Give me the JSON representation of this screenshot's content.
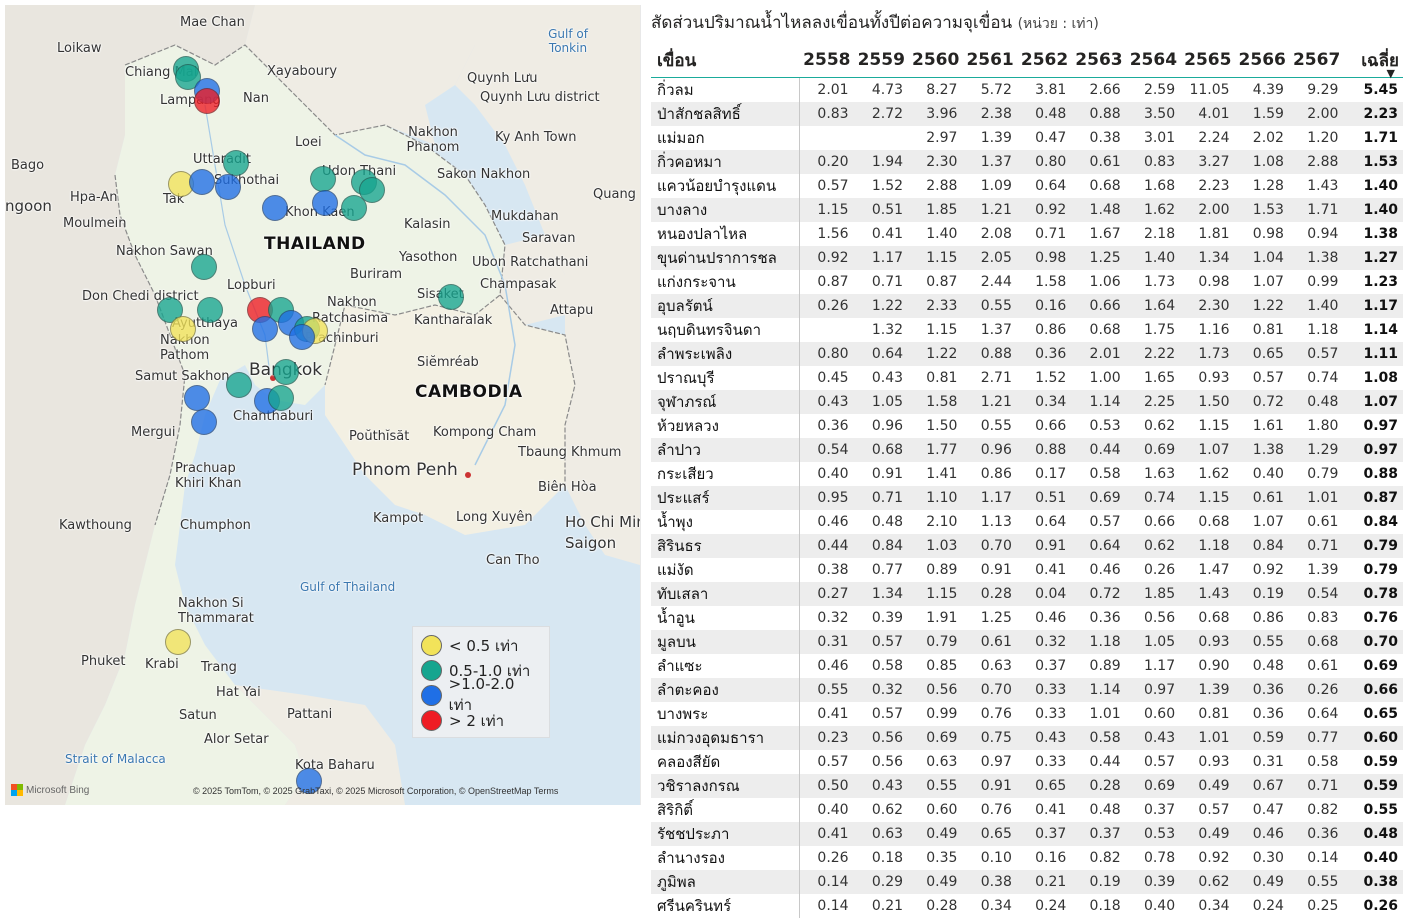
{
  "map": {
    "country_labels": [
      "THAILAND",
      "CAMBODIA"
    ],
    "place_labels": [
      "Mae Chan",
      "Loikaw",
      "Chiang Mai",
      "Xayaboury",
      "Quynh Lưu",
      "Quynh Lưu district",
      "Lampang",
      "Nan",
      "Gulf of Tonkin",
      "Loei",
      "Nakhon Phanom",
      "Ky Anh Town",
      "Bago",
      "Uttaradit",
      "Udon Thani",
      "Sakon Nakhon",
      "Sukhothai",
      "Hpa-An",
      "Tak",
      "Khon Kaen",
      "Quang",
      "ngoon",
      "Moulmein",
      "Kalasin",
      "Mukdahan",
      "Saravan",
      "Nakhon Sawan",
      "Yasothon",
      "Ubon Ratchathani",
      "Buriram",
      "Don Chedi district",
      "Lopburi",
      "Sisaket",
      "Champasak",
      "Nakhon",
      "Ratchasima",
      "Attapu",
      "Ayutthaya",
      "Kantharalak",
      "Nakhon Pathom",
      "Prachinburi",
      "Samut Sakhon",
      "Bangkok",
      "Siĕmréab",
      "Chanthaburi",
      "Mergui",
      "Poŭthĭsăt",
      "Kompong Cham",
      "Phnom Penh",
      "Tbaung Khmum",
      "Prachuap Khiri Khan",
      "Biên Hòa",
      "Kawthoung",
      "Chumphon",
      "Kampot",
      "Long Xuyên",
      "Ho Chi Minh",
      "Saigon",
      "Can Tho",
      "Gulf of Thailand",
      "Nakhon Si Thammarat",
      "Phuket",
      "Krabi",
      "Trang",
      "Hat Yai",
      "Satun",
      "Pattani",
      "Alor Setar",
      "Strait of Malacca",
      "Kota Baharu"
    ],
    "legend": [
      {
        "label": "< 0.5 เท่า",
        "color": "#f2e35a"
      },
      {
        "label": "0.5-1.0 เท่า",
        "color": "#16a58f"
      },
      {
        "label": ">1.0-2.0 เท่า",
        "color": "#1f6fe6"
      },
      {
        "label": "> 2 เท่า",
        "color": "#ee1c24"
      }
    ],
    "markers": [
      {
        "lat": 19.45,
        "lon": 98.75,
        "category": "0.5-1.0 เท่า"
      },
      {
        "lat": 19.3,
        "lon": 98.78,
        "category": "0.5-1.0 เท่า"
      },
      {
        "lat": 19.05,
        "lon": 99.15,
        "category": ">1.0-2.0 เท่า"
      },
      {
        "lat": 18.85,
        "lon": 99.15,
        "category": "> 2 เท่า"
      },
      {
        "lat": 17.7,
        "lon": 99.7,
        "category": "0.5-1.0 เท่า"
      },
      {
        "lat": 17.3,
        "lon": 98.65,
        "category": "< 0.5 เท่า"
      },
      {
        "lat": 17.35,
        "lon": 99.05,
        "category": ">1.0-2.0 เท่า"
      },
      {
        "lat": 17.25,
        "lon": 99.55,
        "category": ">1.0-2.0 เท่า"
      },
      {
        "lat": 17.4,
        "lon": 101.35,
        "category": "0.5-1.0 เท่า"
      },
      {
        "lat": 17.35,
        "lon": 102.15,
        "category": "0.5-1.0 เท่า"
      },
      {
        "lat": 17.2,
        "lon": 102.3,
        "category": "0.5-1.0 เท่า"
      },
      {
        "lat": 16.95,
        "lon": 101.4,
        "category": ">1.0-2.0 เท่า"
      },
      {
        "lat": 16.85,
        "lon": 100.45,
        "category": ">1.0-2.0 เท่า"
      },
      {
        "lat": 16.85,
        "lon": 101.95,
        "category": "0.5-1.0 เท่า"
      },
      {
        "lat": 15.75,
        "lon": 99.1,
        "category": "0.5-1.0 เท่า"
      },
      {
        "lat": 15.2,
        "lon": 103.8,
        "category": "0.5-1.0 เท่า"
      },
      {
        "lat": 14.95,
        "lon": 98.45,
        "category": "0.5-1.0 เท่า"
      },
      {
        "lat": 14.95,
        "lon": 99.2,
        "category": "0.5-1.0 เท่า"
      },
      {
        "lat": 14.95,
        "lon": 100.15,
        "category": "> 2 เท่า"
      },
      {
        "lat": 14.95,
        "lon": 100.55,
        "category": "0.5-1.0 เท่า"
      },
      {
        "lat": 14.6,
        "lon": 98.7,
        "category": "< 0.5 เท่า"
      },
      {
        "lat": 14.6,
        "lon": 100.25,
        "category": ">1.0-2.0 เท่า"
      },
      {
        "lat": 14.7,
        "lon": 100.75,
        "category": ">1.0-2.0 เท่า"
      },
      {
        "lat": 14.6,
        "lon": 101.05,
        "category": "0.5-1.0 เท่า"
      },
      {
        "lat": 14.55,
        "lon": 101.2,
        "category": "< 0.5 เท่า"
      },
      {
        "lat": 14.45,
        "lon": 100.95,
        "category": ">1.0-2.0 เท่า"
      },
      {
        "lat": 13.8,
        "lon": 100.65,
        "category": "0.5-1.0 เท่า"
      },
      {
        "lat": 13.55,
        "lon": 99.75,
        "category": "0.5-1.0 เท่า"
      },
      {
        "lat": 13.3,
        "lon": 98.95,
        "category": ">1.0-2.0 เท่า"
      },
      {
        "lat": 13.25,
        "lon": 100.3,
        "category": ">1.0-2.0 เท่า"
      },
      {
        "lat": 13.3,
        "lon": 100.55,
        "category": "0.5-1.0 เท่า"
      },
      {
        "lat": 12.85,
        "lon": 99.1,
        "category": ">1.0-2.0 เท่า"
      },
      {
        "lat": 8.75,
        "lon": 98.6,
        "category": "< 0.5 เท่า"
      },
      {
        "lat": 6.15,
        "lon": 101.1,
        "category": ">1.0-2.0 เท่า"
      }
    ],
    "attribution": "© 2025 TomTom, © 2025 GrabTaxi, © 2025 Microsoft Corporation, © OpenStreetMap  Terms",
    "bing_label": "Microsoft Bing"
  },
  "table": {
    "title": "สัดส่วนปริมาณน้ำไหลลงเขื่อนทั้งปีต่อความจุเขื่อน",
    "unit": "(หน่วย : เท่า)",
    "columns": [
      "เขื่อน",
      "2558",
      "2559",
      "2560",
      "2561",
      "2562",
      "2563",
      "2564",
      "2565",
      "2566",
      "2567",
      "เฉลี่ย"
    ],
    "rows": [
      [
        "กิ่วลม",
        "2.01",
        "4.73",
        "8.27",
        "5.72",
        "3.81",
        "2.66",
        "2.59",
        "11.05",
        "4.39",
        "9.29",
        "5.45"
      ],
      [
        "ป่าสักชลสิทธิ์",
        "0.83",
        "2.72",
        "3.96",
        "2.38",
        "0.48",
        "0.88",
        "3.50",
        "4.01",
        "1.59",
        "2.00",
        "2.23"
      ],
      [
        "แม่มอก",
        "",
        "",
        "2.97",
        "1.39",
        "0.47",
        "0.38",
        "3.01",
        "2.24",
        "2.02",
        "1.20",
        "1.71"
      ],
      [
        "กิ่วคอหมา",
        "0.20",
        "1.94",
        "2.30",
        "1.37",
        "0.80",
        "0.61",
        "0.83",
        "3.27",
        "1.08",
        "2.88",
        "1.53"
      ],
      [
        "แควน้อยบำรุงแดน",
        "0.57",
        "1.52",
        "2.88",
        "1.09",
        "0.64",
        "0.68",
        "1.68",
        "2.23",
        "1.28",
        "1.43",
        "1.40"
      ],
      [
        "บางลาง",
        "1.15",
        "0.51",
        "1.85",
        "1.21",
        "0.92",
        "1.48",
        "1.62",
        "2.00",
        "1.53",
        "1.71",
        "1.40"
      ],
      [
        "หนองปลาไหล",
        "1.56",
        "0.41",
        "1.40",
        "2.08",
        "0.71",
        "1.67",
        "2.18",
        "1.81",
        "0.98",
        "0.94",
        "1.38"
      ],
      [
        "ขุนด่านปราการชล",
        "0.92",
        "1.17",
        "1.15",
        "2.05",
        "0.98",
        "1.25",
        "1.40",
        "1.34",
        "1.04",
        "1.38",
        "1.27"
      ],
      [
        "แก่งกระจาน",
        "0.87",
        "0.71",
        "0.87",
        "2.44",
        "1.58",
        "1.06",
        "1.73",
        "0.98",
        "1.07",
        "0.99",
        "1.23"
      ],
      [
        "อุบลรัตน์",
        "0.26",
        "1.22",
        "2.33",
        "0.55",
        "0.16",
        "0.66",
        "1.64",
        "2.30",
        "1.22",
        "1.40",
        "1.17"
      ],
      [
        "นฤบดินทรจินดา",
        "",
        "1.32",
        "1.15",
        "1.37",
        "0.86",
        "0.68",
        "1.75",
        "1.16",
        "0.81",
        "1.18",
        "1.14"
      ],
      [
        "ลำพระเพลิง",
        "0.80",
        "0.64",
        "1.22",
        "0.88",
        "0.36",
        "2.01",
        "2.22",
        "1.73",
        "0.65",
        "0.57",
        "1.11"
      ],
      [
        "ปราณบุรี",
        "0.45",
        "0.43",
        "0.81",
        "2.71",
        "1.52",
        "1.00",
        "1.65",
        "0.93",
        "0.57",
        "0.74",
        "1.08"
      ],
      [
        "จุฬาภรณ์",
        "0.43",
        "1.05",
        "1.58",
        "1.21",
        "0.34",
        "1.14",
        "2.25",
        "1.50",
        "0.72",
        "0.48",
        "1.07"
      ],
      [
        "ห้วยหลวง",
        "0.36",
        "0.96",
        "1.50",
        "0.55",
        "0.66",
        "0.53",
        "0.62",
        "1.15",
        "1.61",
        "1.80",
        "0.97"
      ],
      [
        "ลำปาว",
        "0.54",
        "0.68",
        "1.77",
        "0.96",
        "0.88",
        "0.44",
        "0.69",
        "1.07",
        "1.38",
        "1.29",
        "0.97"
      ],
      [
        "กระเสียว",
        "0.40",
        "0.91",
        "1.41",
        "0.86",
        "0.17",
        "0.58",
        "1.63",
        "1.62",
        "0.40",
        "0.79",
        "0.88"
      ],
      [
        "ประแสร์",
        "0.95",
        "0.71",
        "1.10",
        "1.17",
        "0.51",
        "0.69",
        "0.74",
        "1.15",
        "0.61",
        "1.01",
        "0.87"
      ],
      [
        "น้ำพุง",
        "0.46",
        "0.48",
        "2.10",
        "1.13",
        "0.64",
        "0.57",
        "0.66",
        "0.68",
        "1.07",
        "0.61",
        "0.84"
      ],
      [
        "สิรินธร",
        "0.44",
        "0.84",
        "1.03",
        "0.70",
        "0.91",
        "0.64",
        "0.62",
        "1.18",
        "0.84",
        "0.71",
        "0.79"
      ],
      [
        "แม่งัด",
        "0.38",
        "0.77",
        "0.89",
        "0.91",
        "0.41",
        "0.46",
        "0.26",
        "1.47",
        "0.92",
        "1.39",
        "0.79"
      ],
      [
        "ทับเสลา",
        "0.27",
        "1.34",
        "1.15",
        "0.28",
        "0.04",
        "0.72",
        "1.85",
        "1.43",
        "0.19",
        "0.54",
        "0.78"
      ],
      [
        "น้ำอูน",
        "0.32",
        "0.39",
        "1.91",
        "1.25",
        "0.46",
        "0.36",
        "0.56",
        "0.68",
        "0.86",
        "0.83",
        "0.76"
      ],
      [
        "มูลบน",
        "0.31",
        "0.57",
        "0.79",
        "0.61",
        "0.32",
        "1.18",
        "1.05",
        "0.93",
        "0.55",
        "0.68",
        "0.70"
      ],
      [
        "ลำแซะ",
        "0.46",
        "0.58",
        "0.85",
        "0.63",
        "0.37",
        "0.89",
        "1.17",
        "0.90",
        "0.48",
        "0.61",
        "0.69"
      ],
      [
        "ลำตะคอง",
        "0.55",
        "0.32",
        "0.56",
        "0.70",
        "0.33",
        "1.14",
        "0.97",
        "1.39",
        "0.36",
        "0.26",
        "0.66"
      ],
      [
        "บางพระ",
        "0.41",
        "0.57",
        "0.99",
        "0.76",
        "0.33",
        "1.01",
        "0.60",
        "0.81",
        "0.36",
        "0.64",
        "0.65"
      ],
      [
        "แม่กวงอุดมธารา",
        "0.23",
        "0.56",
        "0.69",
        "0.75",
        "0.43",
        "0.58",
        "0.43",
        "1.01",
        "0.59",
        "0.77",
        "0.60"
      ],
      [
        "คลองสียัด",
        "0.57",
        "0.56",
        "0.63",
        "0.97",
        "0.33",
        "0.44",
        "0.57",
        "0.93",
        "0.31",
        "0.58",
        "0.59"
      ],
      [
        "วชิราลงกรณ",
        "0.50",
        "0.43",
        "0.55",
        "0.91",
        "0.65",
        "0.28",
        "0.69",
        "0.49",
        "0.67",
        "0.71",
        "0.59"
      ],
      [
        "สิริกิติ์",
        "0.40",
        "0.62",
        "0.60",
        "0.76",
        "0.41",
        "0.48",
        "0.37",
        "0.57",
        "0.47",
        "0.82",
        "0.55"
      ],
      [
        "รัชชประภา",
        "0.41",
        "0.63",
        "0.49",
        "0.65",
        "0.37",
        "0.37",
        "0.53",
        "0.49",
        "0.46",
        "0.36",
        "0.48"
      ],
      [
        "ลำนางรอง",
        "0.26",
        "0.18",
        "0.35",
        "0.10",
        "0.16",
        "0.82",
        "0.78",
        "0.92",
        "0.30",
        "0.14",
        "0.40"
      ],
      [
        "ภูมิพล",
        "0.14",
        "0.29",
        "0.49",
        "0.38",
        "0.21",
        "0.19",
        "0.39",
        "0.62",
        "0.49",
        "0.55",
        "0.38"
      ],
      [
        "ศรีนครินทร์",
        "0.14",
        "0.21",
        "0.28",
        "0.34",
        "0.24",
        "0.18",
        "0.40",
        "0.34",
        "0.24",
        "0.25",
        "0.26"
      ]
    ]
  }
}
